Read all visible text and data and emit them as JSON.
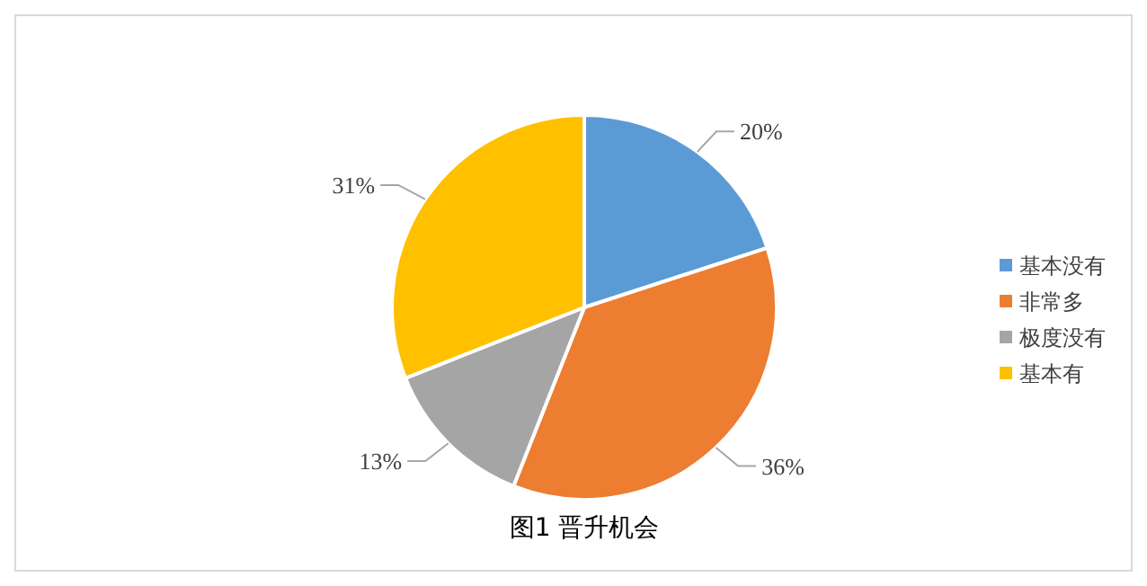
{
  "chart_data": {
    "type": "pie",
    "title": "图1  晋升机会",
    "categories": [
      "基本没有",
      "非常多",
      "极度没有",
      "基本有"
    ],
    "values": [
      20,
      36,
      13,
      31
    ],
    "value_labels": [
      "20%",
      "36%",
      "13%",
      "31%"
    ],
    "colors": [
      "#5b9bd5",
      "#ed7d31",
      "#a5a5a5",
      "#ffc000"
    ],
    "legend": "right"
  }
}
